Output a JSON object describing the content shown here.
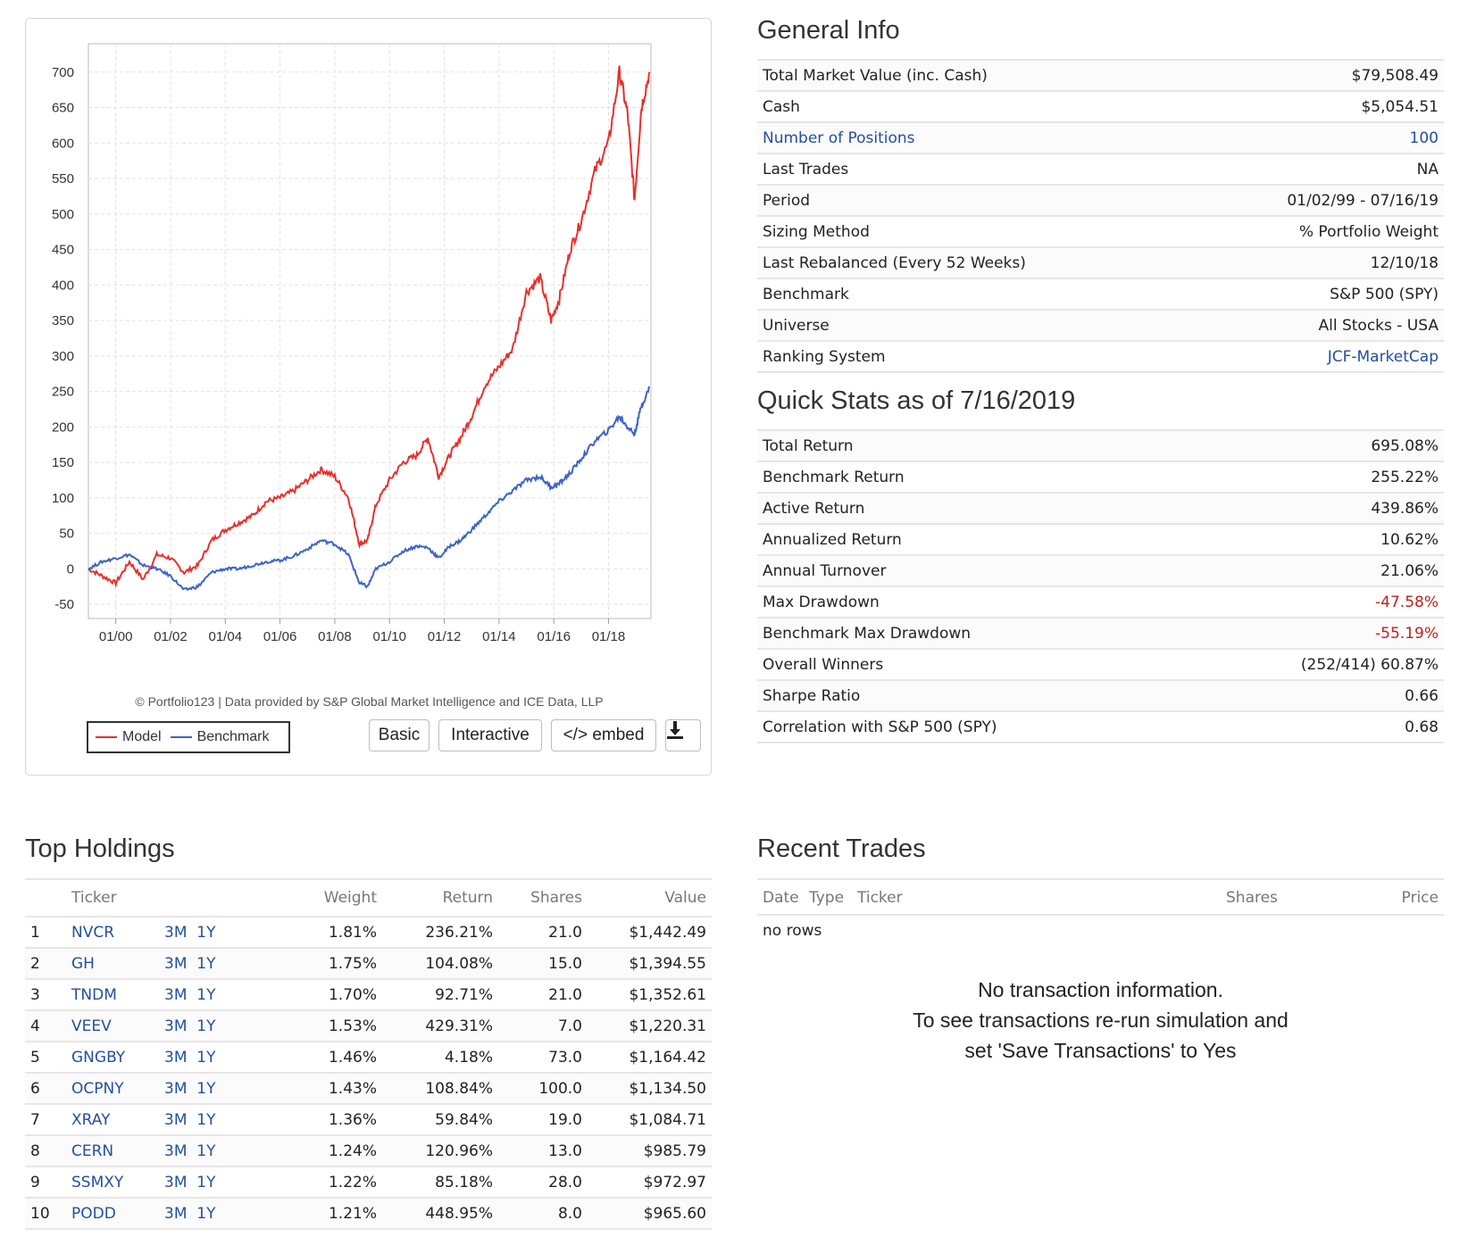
{
  "chart": {
    "credit": "© Portfolio123 | Data provided by S&P Global Market Intelligence and ICE Data, LLP",
    "legend": [
      {
        "name": "Model",
        "color": "#e8302c"
      },
      {
        "name": "Benchmark",
        "color": "#3b64c8"
      }
    ],
    "buttons": {
      "basic": "Basic",
      "interactive": "Interactive",
      "embed": "</> embed",
      "download": "download-icon"
    }
  },
  "chart_data": {
    "type": "line",
    "title": "",
    "xlabel": "",
    "ylabel": "",
    "x_ticks": [
      "01/00",
      "01/02",
      "01/04",
      "01/06",
      "01/08",
      "01/10",
      "01/12",
      "01/14",
      "01/16",
      "01/18"
    ],
    "y_ticks": [
      700,
      650,
      600,
      550,
      500,
      450,
      400,
      350,
      300,
      250,
      200,
      150,
      100,
      50,
      0,
      -50
    ],
    "xlim": [
      "1999-01",
      "2019-07"
    ],
    "ylim": [
      -70,
      740
    ],
    "grid": true,
    "series": [
      {
        "name": "Model",
        "color": "#e8302c",
        "x": [
          1999.0,
          1999.5,
          2000.0,
          2000.5,
          2001.0,
          2001.5,
          2002.0,
          2002.5,
          2003.0,
          2003.5,
          2004.0,
          2004.5,
          2005.0,
          2005.5,
          2006.0,
          2006.5,
          2007.0,
          2007.5,
          2008.0,
          2008.5,
          2008.9,
          2009.2,
          2009.5,
          2010.0,
          2010.5,
          2011.0,
          2011.4,
          2011.8,
          2012.2,
          2012.6,
          2013.0,
          2013.5,
          2014.0,
          2014.5,
          2015.0,
          2015.5,
          2015.9,
          2016.2,
          2016.6,
          2017.0,
          2017.5,
          2018.0,
          2018.4,
          2018.7,
          2018.95,
          2019.2,
          2019.5
        ],
        "y": [
          0,
          -10,
          -20,
          10,
          -15,
          20,
          15,
          -5,
          5,
          40,
          55,
          65,
          75,
          95,
          100,
          110,
          125,
          140,
          130,
          100,
          35,
          40,
          90,
          125,
          150,
          160,
          185,
          130,
          160,
          185,
          215,
          260,
          285,
          310,
          390,
          410,
          350,
          380,
          450,
          490,
          560,
          600,
          700,
          640,
          520,
          650,
          700
        ]
      },
      {
        "name": "Benchmark",
        "color": "#3b64c8",
        "x": [
          1999.0,
          1999.5,
          2000.0,
          2000.5,
          2001.0,
          2001.5,
          2002.0,
          2002.5,
          2003.0,
          2003.5,
          2004.0,
          2004.5,
          2005.0,
          2005.5,
          2006.0,
          2006.5,
          2007.0,
          2007.5,
          2008.0,
          2008.5,
          2008.9,
          2009.2,
          2009.5,
          2010.0,
          2010.5,
          2011.0,
          2011.4,
          2011.8,
          2012.2,
          2012.6,
          2013.0,
          2013.5,
          2014.0,
          2014.5,
          2015.0,
          2015.5,
          2015.9,
          2016.2,
          2016.6,
          2017.0,
          2017.5,
          2018.0,
          2018.4,
          2018.7,
          2018.95,
          2019.2,
          2019.5
        ],
        "y": [
          0,
          10,
          15,
          20,
          5,
          0,
          -10,
          -30,
          -25,
          -5,
          0,
          0,
          5,
          10,
          12,
          18,
          28,
          40,
          35,
          20,
          -20,
          -25,
          0,
          10,
          25,
          32,
          30,
          15,
          32,
          40,
          55,
          75,
          95,
          110,
          125,
          130,
          115,
          120,
          135,
          155,
          180,
          195,
          215,
          200,
          190,
          230,
          255
        ]
      }
    ]
  },
  "general_info": {
    "title": "General Info",
    "rows": [
      {
        "label": "Total Market Value (inc. Cash)",
        "value": "$79,508.49"
      },
      {
        "label": "Cash",
        "value": "$5,054.51"
      },
      {
        "label": "Number of Positions",
        "value": "100",
        "link": true
      },
      {
        "label": "Last Trades",
        "value": "NA"
      },
      {
        "label": "Period",
        "value": "01/02/99 - 07/16/19"
      },
      {
        "label": "Sizing Method",
        "value": "% Portfolio Weight"
      },
      {
        "label": "Last Rebalanced (Every 52 Weeks)",
        "value": "12/10/18"
      },
      {
        "label": "Benchmark",
        "value": "S&P 500 (SPY)"
      },
      {
        "label": "Universe",
        "value": "All Stocks - USA"
      },
      {
        "label": "Ranking System",
        "value": "JCF-MarketCap",
        "value_link": true
      }
    ]
  },
  "quick_stats": {
    "title": "Quick Stats as of 7/16/2019",
    "rows": [
      {
        "label": "Total Return",
        "value": "695.08%"
      },
      {
        "label": "Benchmark Return",
        "value": "255.22%"
      },
      {
        "label": "Active Return",
        "value": "439.86%"
      },
      {
        "label": "Annualized Return",
        "value": "10.62%"
      },
      {
        "label": "Annual Turnover",
        "value": "21.06%"
      },
      {
        "label": "Max Drawdown",
        "value": "-47.58%",
        "negative": true
      },
      {
        "label": "Benchmark Max Drawdown",
        "value": "-55.19%",
        "negative": true
      },
      {
        "label": "Overall Winners",
        "value": "(252/414) 60.87%"
      },
      {
        "label": "Sharpe Ratio",
        "value": "0.66"
      },
      {
        "label": "Correlation with S&P 500 (SPY)",
        "value": "0.68"
      }
    ]
  },
  "top_holdings": {
    "title": "Top Holdings",
    "headers": {
      "ticker": "Ticker",
      "weight": "Weight",
      "return": "Return",
      "shares": "Shares",
      "value": "Value"
    },
    "rows": [
      {
        "rank": "1",
        "ticker": "NVCR",
        "m3": "3M",
        "y1": "1Y",
        "weight": "1.81%",
        "return": "236.21%",
        "shares": "21.0",
        "value": "$1,442.49"
      },
      {
        "rank": "2",
        "ticker": "GH",
        "m3": "3M",
        "y1": "1Y",
        "weight": "1.75%",
        "return": "104.08%",
        "shares": "15.0",
        "value": "$1,394.55"
      },
      {
        "rank": "3",
        "ticker": "TNDM",
        "m3": "3M",
        "y1": "1Y",
        "weight": "1.70%",
        "return": "92.71%",
        "shares": "21.0",
        "value": "$1,352.61"
      },
      {
        "rank": "4",
        "ticker": "VEEV",
        "m3": "3M",
        "y1": "1Y",
        "weight": "1.53%",
        "return": "429.31%",
        "shares": "7.0",
        "value": "$1,220.31"
      },
      {
        "rank": "5",
        "ticker": "GNGBY",
        "m3": "3M",
        "y1": "1Y",
        "weight": "1.46%",
        "return": "4.18%",
        "shares": "73.0",
        "value": "$1,164.42"
      },
      {
        "rank": "6",
        "ticker": "OCPNY",
        "m3": "3M",
        "y1": "1Y",
        "weight": "1.43%",
        "return": "108.84%",
        "shares": "100.0",
        "value": "$1,134.50"
      },
      {
        "rank": "7",
        "ticker": "XRAY",
        "m3": "3M",
        "y1": "1Y",
        "weight": "1.36%",
        "return": "59.84%",
        "shares": "19.0",
        "value": "$1,084.71"
      },
      {
        "rank": "8",
        "ticker": "CERN",
        "m3": "3M",
        "y1": "1Y",
        "weight": "1.24%",
        "return": "120.96%",
        "shares": "13.0",
        "value": "$985.79"
      },
      {
        "rank": "9",
        "ticker": "SSMXY",
        "m3": "3M",
        "y1": "1Y",
        "weight": "1.22%",
        "return": "85.18%",
        "shares": "28.0",
        "value": "$972.97"
      },
      {
        "rank": "10",
        "ticker": "PODD",
        "m3": "3M",
        "y1": "1Y",
        "weight": "1.21%",
        "return": "448.95%",
        "shares": "8.0",
        "value": "$965.60"
      }
    ]
  },
  "recent_trades": {
    "title": "Recent Trades",
    "headers": {
      "date": "Date",
      "type": "Type",
      "ticker": "Ticker",
      "shares": "Shares",
      "price": "Price"
    },
    "empty": "no rows",
    "message_line1": "No transaction information.",
    "message_line2": "To see transactions re-run simulation and",
    "message_line3": "set 'Save Transactions' to Yes"
  },
  "colors": {
    "link": "#234f9e",
    "negative": "#c41e1e",
    "model": "#e8302c",
    "benchmark": "#3b64c8"
  }
}
